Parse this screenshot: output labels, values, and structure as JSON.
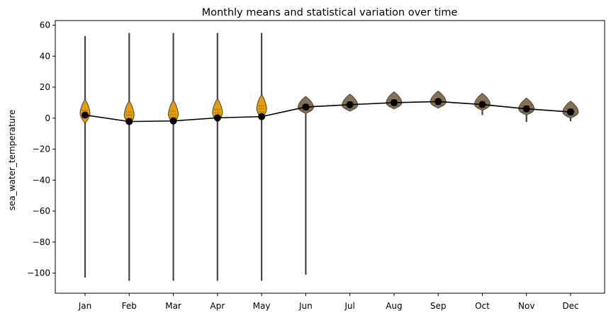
{
  "chart_data": {
    "type": "violin",
    "title": "Monthly means and statistical variation over time",
    "xlabel": "",
    "ylabel": "sea_water_temperature",
    "categories": [
      "Jan",
      "Feb",
      "Mar",
      "Apr",
      "May",
      "Jun",
      "Jul",
      "Aug",
      "Sep",
      "Oct",
      "Nov",
      "Dec"
    ],
    "yticks": [
      60,
      40,
      20,
      0,
      -20,
      -40,
      -60,
      -80,
      -100
    ],
    "ylim": [
      -113,
      63
    ],
    "grid": false,
    "series": [
      {
        "kind": "violin",
        "color": "#e69f00",
        "min": [
          -103,
          -105,
          -105,
          -105,
          -105,
          -101,
          5.5,
          7.5,
          8.5,
          2.0,
          -2.5,
          -2.0
        ],
        "max": [
          53,
          55,
          55,
          55,
          55,
          14,
          15,
          14,
          12,
          11,
          10,
          9
        ],
        "median": [
          3.0,
          2.0,
          2.5,
          3.5,
          6.0,
          7.0,
          8.5,
          10.0,
          10.5,
          9.0,
          6.0,
          4.0
        ]
      },
      {
        "kind": "line",
        "color": "#000000",
        "values": [
          2.0,
          -2.2,
          -1.8,
          0.2,
          1.0,
          7.2,
          8.7,
          10.0,
          10.7,
          8.8,
          6.0,
          4.0
        ]
      }
    ]
  }
}
